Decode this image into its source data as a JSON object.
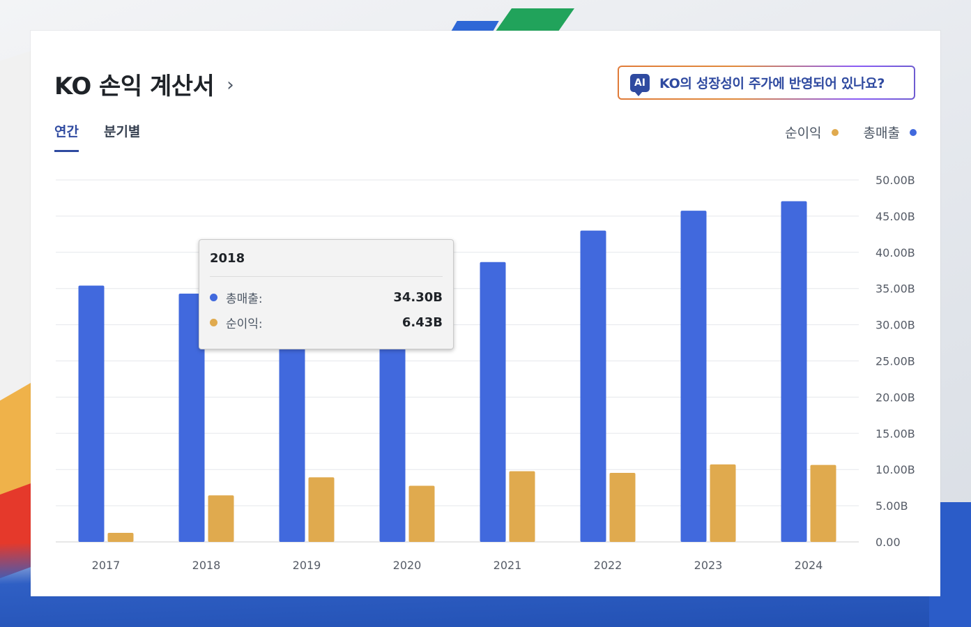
{
  "header": {
    "title": "KO 손익 계산서",
    "chevron": "›",
    "ai_badge": "AI",
    "ai_question": "KO의 성장성이 주가에 반영되어 있나요?"
  },
  "tabs": [
    {
      "label": "연간",
      "active": true
    },
    {
      "label": "분기별",
      "active": false
    }
  ],
  "legend": [
    {
      "label": "순이익",
      "color": "#e0aa4e"
    },
    {
      "label": "총매출",
      "color": "#4169dd"
    }
  ],
  "tooltip": {
    "year": "2018",
    "rows": [
      {
        "label": "총매출:",
        "value": "34.30B",
        "color": "#4169dd"
      },
      {
        "label": "순이익:",
        "value": "6.43B",
        "color": "#e0aa4e"
      }
    ]
  },
  "chart_data": {
    "type": "bar",
    "categories": [
      "2017",
      "2018",
      "2019",
      "2020",
      "2021",
      "2022",
      "2023",
      "2024"
    ],
    "series": [
      {
        "name": "총매출",
        "color": "#4169dd",
        "values": [
          35.4,
          34.3,
          37.27,
          33.01,
          38.66,
          43.0,
          45.75,
          47.06
        ]
      },
      {
        "name": "순이익",
        "color": "#e0aa4e",
        "values": [
          1.25,
          6.43,
          8.92,
          7.75,
          9.77,
          9.54,
          10.71,
          10.63
        ]
      }
    ],
    "ylim": [
      0,
      50
    ],
    "yticks": [
      "0.00",
      "5.00B",
      "10.00B",
      "15.00B",
      "20.00B",
      "25.00B",
      "30.00B",
      "35.00B",
      "40.00B",
      "45.00B",
      "50.00B"
    ],
    "y_axis_side": "right",
    "grid": true,
    "legend_position": "top-right"
  }
}
